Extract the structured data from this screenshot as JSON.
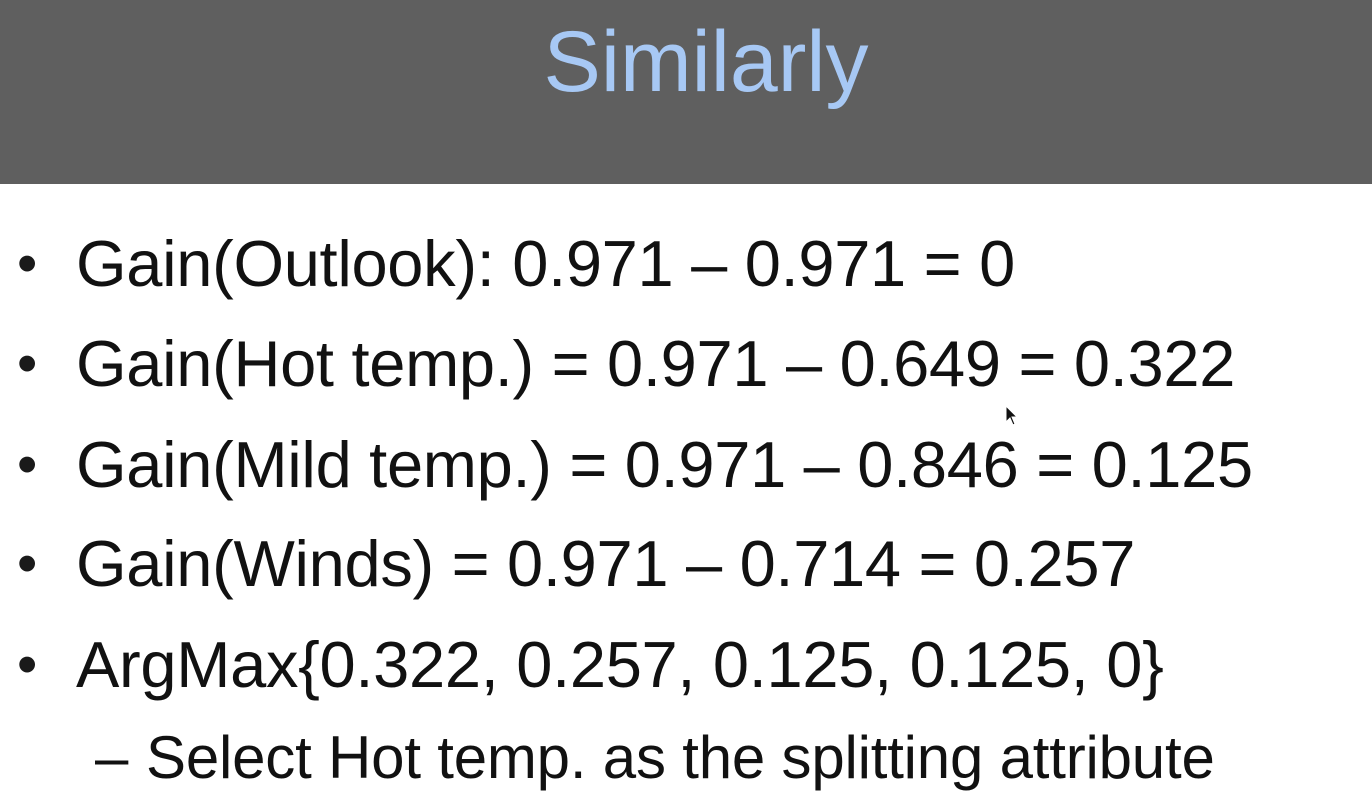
{
  "slide": {
    "title": "Similarly",
    "bullet_symbol": "•",
    "bullets": [
      "Gain(Outlook): 0.971 – 0.971 = 0",
      "Gain(Hot temp.) = 0.971 – 0.649 = 0.322",
      "Gain(Mild temp.) = 0.971 – 0.846 = 0.125",
      "Gain(Winds) = 0.971 – 0.714 = 0.257",
      "ArgMax{0.322, 0.257, 0.125, 0.125, 0}"
    ],
    "sub_bullet_symbol": "–",
    "sub_bullet": "Select Hot temp. as the splitting attribute"
  },
  "colors": {
    "title_bar": "#5f5f5f",
    "title_text": "#a7c8f4",
    "body_text": "#111111",
    "background": "#ffffff"
  },
  "icons": {
    "cursor": "mouse-pointer-icon"
  }
}
